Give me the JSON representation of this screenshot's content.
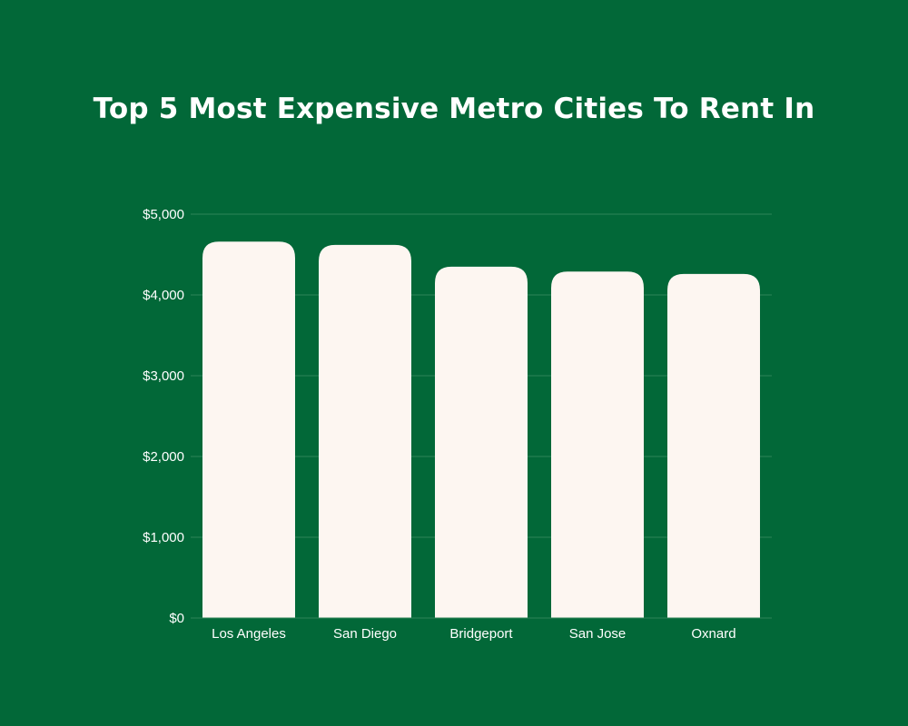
{
  "colors": {
    "background": "#026838",
    "bar": "#fdf6f1",
    "grid": "#2f8458",
    "text": "#ffffff"
  },
  "chart_data": {
    "type": "bar",
    "title": "Top 5 Most Expensive Metro Cities To Rent In",
    "categories": [
      "Los Angeles",
      "San Diego",
      "Bridgeport",
      "San Jose",
      "Oxnard"
    ],
    "values": [
      4660,
      4620,
      4350,
      4290,
      4260
    ],
    "ylim": [
      0,
      5000
    ],
    "yticks": [
      0,
      1000,
      2000,
      3000,
      4000,
      5000
    ],
    "ytick_labels": [
      "$0",
      "$1,000",
      "$2,000",
      "$3,000",
      "$4,000",
      "$5,000"
    ],
    "grid": true,
    "legend": "none"
  }
}
